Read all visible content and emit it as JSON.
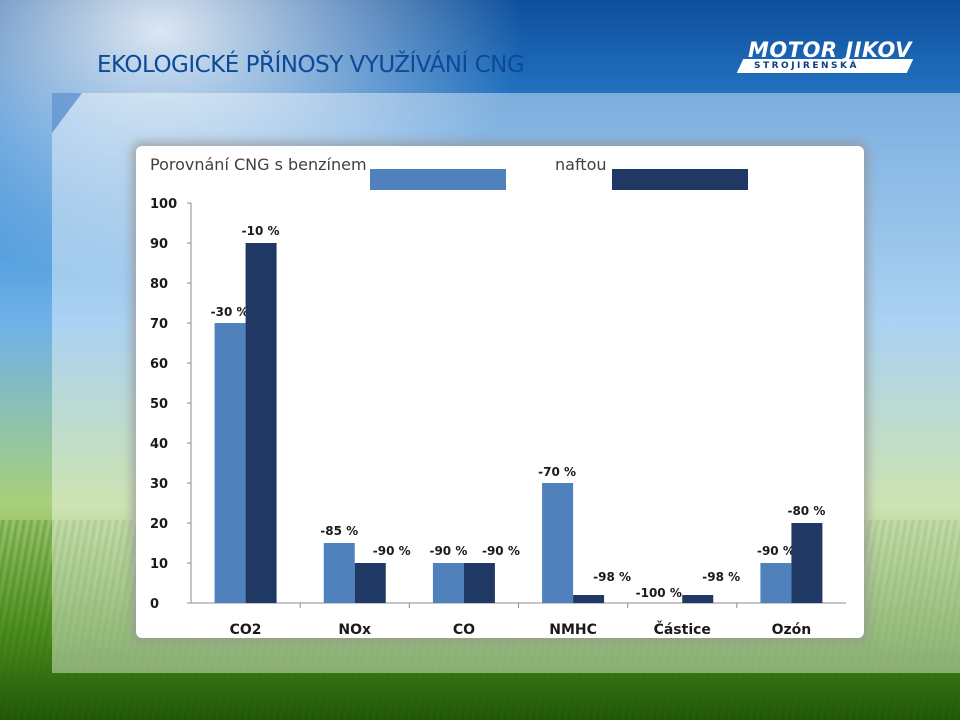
{
  "slide": {
    "title": "EKOLOGICKÉ PŘÍNOSY VYUŽÍVÁNÍ CNG",
    "logo_main": "MOTOR JIKOV",
    "logo_sub": "STROJIRENSKÁ"
  },
  "colors": {
    "title": "#0b4a9a",
    "series_benzin": "#4f81bd",
    "series_nafta": "#1f3864"
  },
  "chart_data": {
    "type": "bar",
    "title": "",
    "xlabel": "",
    "ylabel": "",
    "ylim": [
      0,
      100
    ],
    "yticks": [
      0,
      10,
      20,
      30,
      40,
      50,
      60,
      70,
      80,
      90,
      100
    ],
    "grid": false,
    "legend_placement": "top",
    "categories": [
      "CO2",
      "NOx",
      "CO",
      "NMHC",
      "Částice",
      "Ozón"
    ],
    "series": [
      {
        "name": "Porovnání CNG s benzínem",
        "color": "#4f81bd",
        "values": [
          70,
          15,
          10,
          30,
          0,
          10
        ],
        "labels": [
          "-30 %",
          "-85 %",
          "-90 %",
          "-70 %",
          "-100 %",
          "-90 %"
        ]
      },
      {
        "name": "naftou",
        "color": "#1f3864",
        "values": [
          90,
          10,
          10,
          2,
          2,
          20
        ],
        "labels": [
          "-10 %",
          "-90 %",
          "-90 %",
          "-98 %",
          "-98 %",
          "-80 %"
        ]
      }
    ]
  }
}
